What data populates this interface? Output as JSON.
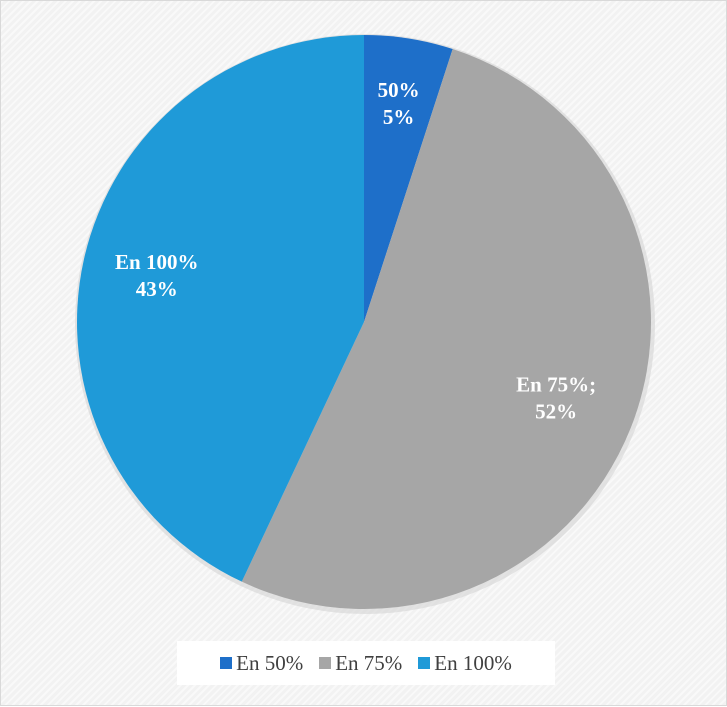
{
  "chart_data": {
    "type": "pie",
    "slices": [
      {
        "name": "En 50%",
        "value": 5,
        "color": "#1e6fc9",
        "label_lines": [
          "50%",
          "5%"
        ]
      },
      {
        "name": "En 75%",
        "value": 52,
        "color": "#a6a6a6",
        "label_lines": [
          "En 75%;",
          "52%"
        ]
      },
      {
        "name": "En 100%",
        "value": 43,
        "color": "#1f9ad8",
        "label_lines": [
          "En 100%",
          "43%"
        ]
      }
    ],
    "legend_position": "bottom"
  },
  "legend": {
    "items": [
      {
        "label": "En 50%",
        "color": "#1e6fc9"
      },
      {
        "label": "En 75%",
        "color": "#a6a6a6"
      },
      {
        "label": "En 100%",
        "color": "#1f9ad8"
      }
    ]
  }
}
